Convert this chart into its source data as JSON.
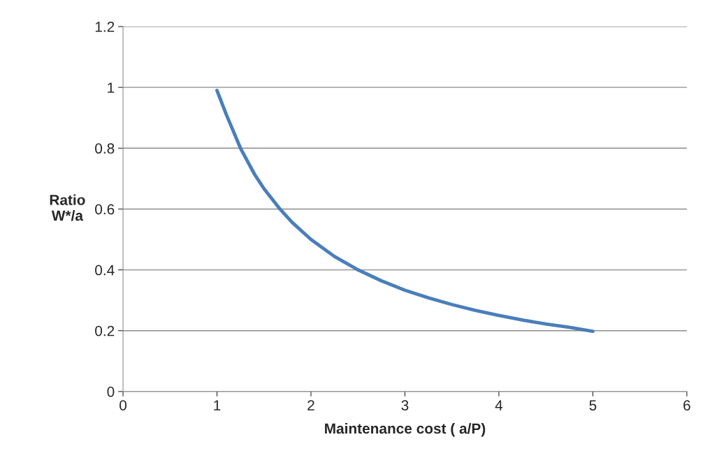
{
  "chart_data": {
    "type": "line",
    "xlabel": "Maintenance cost ( a/P)",
    "ylabel": "Ratio\nW*/a",
    "x": [
      1,
      1.1,
      1.25,
      1.4,
      1.5,
      1.67,
      1.8,
      2,
      2.25,
      2.5,
      2.75,
      3,
      3.25,
      3.5,
      3.75,
      4,
      4.25,
      4.5,
      4.75,
      5
    ],
    "series": [
      {
        "color": "#4a7ebb",
        "values": [
          0.99,
          0.91,
          0.8,
          0.714,
          0.667,
          0.6,
          0.556,
          0.5,
          0.444,
          0.4,
          0.364,
          0.333,
          0.308,
          0.286,
          0.267,
          0.25,
          0.235,
          0.222,
          0.211,
          0.198
        ]
      }
    ],
    "xlim": [
      0,
      6
    ],
    "ylim": [
      0,
      1.2
    ],
    "xticks": [
      0,
      1,
      2,
      3,
      4,
      5,
      6
    ],
    "yticks": [
      0,
      0.2,
      0.4,
      0.6,
      0.8,
      1,
      1.2
    ],
    "grid": "y",
    "legend": false,
    "marker": "none",
    "line_style": "solid"
  }
}
